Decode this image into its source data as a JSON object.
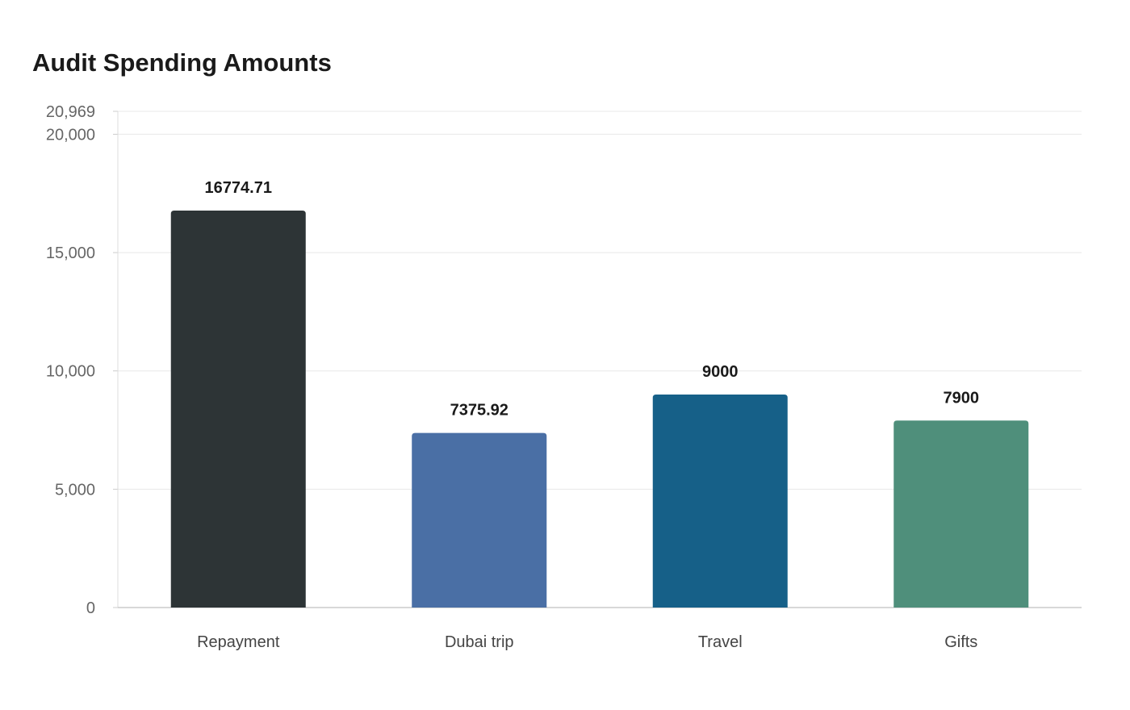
{
  "chart_data": {
    "type": "bar",
    "title": "Audit Spending Amounts",
    "xlabel": "",
    "ylabel": "",
    "categories": [
      "Repayment",
      "Dubai trip",
      "Travel",
      "Gifts"
    ],
    "values": [
      16774.71,
      7375.92,
      9000,
      7900
    ],
    "value_labels": [
      "16774.71",
      "7375.92",
      "9000",
      "7900"
    ],
    "colors": [
      "#2d3436",
      "#4a6fa5",
      "#166088",
      "#4f8f7b"
    ],
    "ylim": [
      0,
      20969
    ],
    "yticks": [
      0,
      5000,
      10000,
      15000,
      20000,
      20969
    ],
    "ytick_labels": [
      "0",
      "5,000",
      "10,000",
      "15,000",
      "20,000",
      "20,969"
    ],
    "grid": true,
    "legend": "none"
  }
}
